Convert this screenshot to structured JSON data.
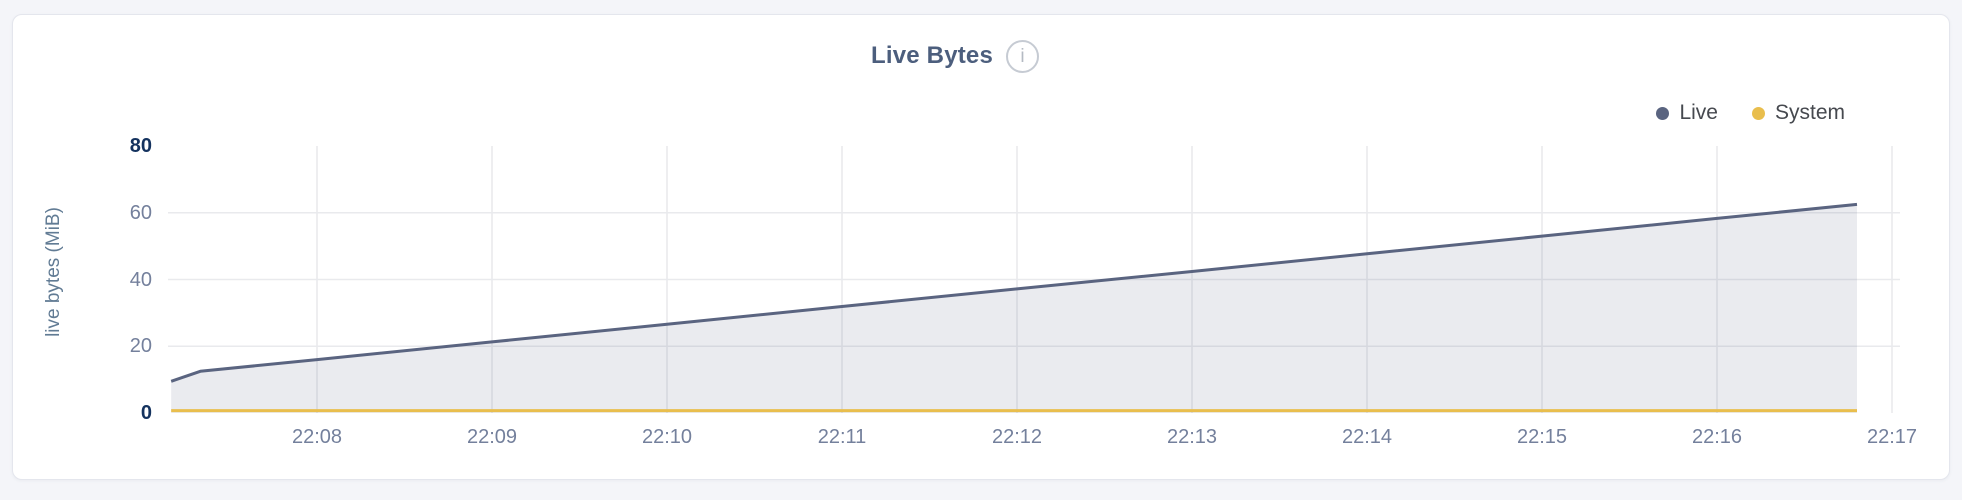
{
  "header": {
    "title": "Live Bytes",
    "info_icon_glyph": "i"
  },
  "chart_data": {
    "type": "area",
    "title": "Live Bytes",
    "xlabel": "",
    "ylabel": "live bytes (MiB)",
    "ylim": [
      0,
      80
    ],
    "grid": true,
    "legend_position": "top-right",
    "x_ticks": [
      {
        "label": "22:08"
      },
      {
        "label": "22:09"
      },
      {
        "label": "22:10"
      },
      {
        "label": "22:11"
      },
      {
        "label": "22:12"
      },
      {
        "label": "22:13"
      },
      {
        "label": "22:14"
      },
      {
        "label": "22:15"
      },
      {
        "label": "22:16"
      },
      {
        "label": "22:17"
      }
    ],
    "y_ticks": [
      {
        "value": 0,
        "label": "0",
        "bold": true,
        "grid": false
      },
      {
        "value": 20,
        "label": "20",
        "bold": false,
        "grid": true
      },
      {
        "value": 40,
        "label": "40",
        "bold": false,
        "grid": true
      },
      {
        "value": 60,
        "label": "60",
        "bold": false,
        "grid": true
      },
      {
        "value": 80,
        "label": "80",
        "bold": true,
        "grid": false
      }
    ],
    "series": [
      {
        "name": "Live",
        "color": "#5a6480",
        "fill": "rgba(90,100,128,0.13)",
        "points": [
          {
            "t": "22:07:10",
            "mib": 9.5
          },
          {
            "t": "22:07:20",
            "mib": 12.5
          },
          {
            "t": "22:08:00",
            "mib": 16.0
          },
          {
            "t": "22:09:00",
            "mib": 21.3
          },
          {
            "t": "22:10:00",
            "mib": 26.6
          },
          {
            "t": "22:11:00",
            "mib": 31.9
          },
          {
            "t": "22:12:00",
            "mib": 37.2
          },
          {
            "t": "22:13:00",
            "mib": 42.4
          },
          {
            "t": "22:14:00",
            "mib": 47.7
          },
          {
            "t": "22:15:00",
            "mib": 53.0
          },
          {
            "t": "22:16:00",
            "mib": 58.3
          },
          {
            "t": "22:16:48",
            "mib": 62.5
          }
        ]
      },
      {
        "name": "System",
        "color": "#e9be4d",
        "fill": null,
        "points": [
          {
            "t": "22:07:10",
            "mib": 0.7
          },
          {
            "t": "22:16:48",
            "mib": 0.7
          }
        ]
      }
    ]
  },
  "colors": {
    "page_background": "#f4f5f9",
    "card_background": "#ffffff",
    "card_border": "#e4e6ed",
    "gridline": "#e9eaed",
    "title_text": "#4c5e7d",
    "axis_tick_text": "#74809c",
    "axis_tick_emphasis": "#14325e",
    "axis_title_text": "#617b94",
    "legend_text": "#46494f",
    "live_series": "#5a6480",
    "system_series": "#e9be4d"
  }
}
